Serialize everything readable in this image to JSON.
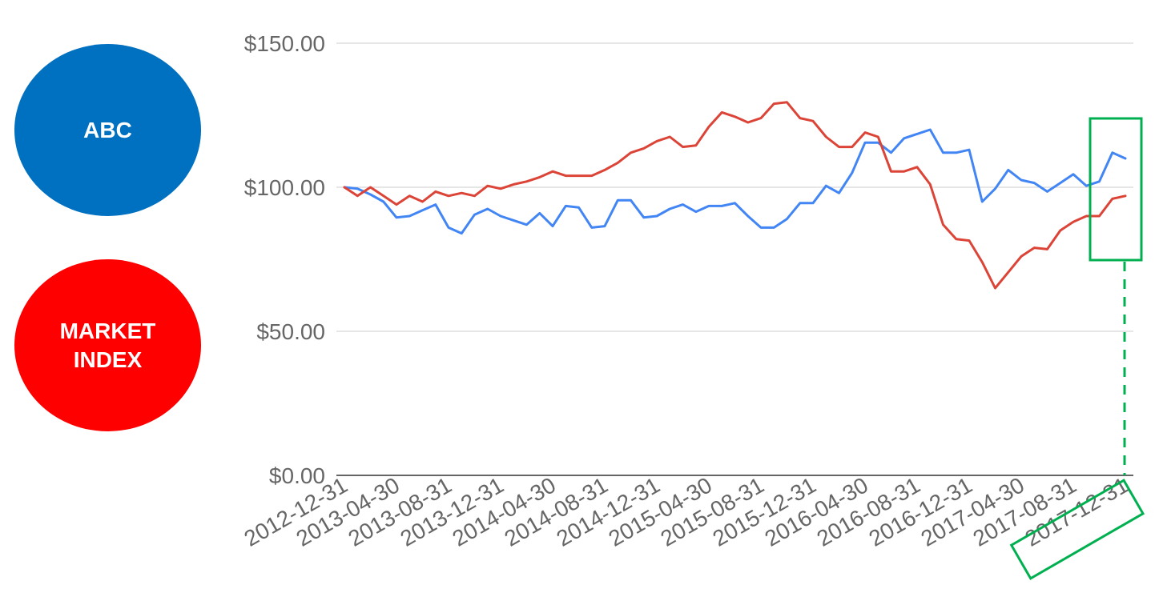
{
  "legend": {
    "abc": {
      "label": "ABC",
      "color": "#0070c0"
    },
    "market": {
      "label": "MARKET\nINDEX",
      "color": "#ff0000"
    }
  },
  "highlight": {
    "label": "2017-12-31",
    "color": "#00b050"
  },
  "chart_data": {
    "type": "line",
    "title": "",
    "xlabel": "",
    "ylabel": "",
    "ylim": [
      0,
      150
    ],
    "grid": true,
    "y_ticks": [
      "$0.00",
      "$50.00",
      "$100.00",
      "$150.00"
    ],
    "y_tick_values": [
      0,
      50,
      100,
      150
    ],
    "x_tick_labels": [
      "2012-12-31",
      "2013-04-30",
      "2013-08-31",
      "2013-12-31",
      "2014-04-30",
      "2014-08-31",
      "2014-12-31",
      "2015-04-30",
      "2015-08-31",
      "2015-12-31",
      "2016-04-30",
      "2016-08-31",
      "2016-12-31",
      "2017-04-30",
      "2017-08-31",
      "2017-12-31"
    ],
    "x_tick_indices": [
      0,
      4,
      8,
      12,
      16,
      20,
      24,
      28,
      32,
      36,
      40,
      44,
      48,
      52,
      56,
      60
    ],
    "series": [
      {
        "name": "ABC",
        "color": "#4285f4",
        "values": [
          100,
          99.5,
          97.5,
          95,
          89.5,
          90,
          92,
          94,
          86,
          84,
          90.5,
          92.5,
          90,
          88.5,
          87,
          91,
          86.5,
          93.5,
          93,
          86,
          86.5,
          95.5,
          95.5,
          89.5,
          90,
          92.5,
          94,
          91.5,
          93.5,
          93.5,
          94.5,
          90,
          86,
          86,
          89,
          94.5,
          94.5,
          100.5,
          98,
          105,
          115.5,
          115.5,
          112,
          117,
          118.5,
          120,
          112,
          112,
          113,
          95,
          99.5,
          106,
          102.5,
          101.5,
          98.5,
          101.5,
          104.5,
          100.5,
          102,
          112,
          110
        ]
      },
      {
        "name": "MARKET INDEX",
        "color": "#db4437",
        "values": [
          100,
          97,
          100,
          97,
          94,
          97,
          95,
          98.5,
          97,
          98,
          97,
          100.5,
          99.5,
          101,
          102,
          103.5,
          105.5,
          104,
          104,
          104,
          106,
          108.5,
          112,
          113.5,
          116,
          117.5,
          114,
          114.5,
          121,
          126,
          124.5,
          122.5,
          124,
          129,
          129.5,
          124,
          123,
          117.5,
          114,
          114,
          119,
          117.5,
          105.5,
          105.5,
          107,
          101,
          87,
          82,
          81.5,
          74,
          65,
          70.5,
          76,
          79,
          78.5,
          85,
          88,
          90,
          90,
          96,
          97
        ]
      }
    ]
  }
}
